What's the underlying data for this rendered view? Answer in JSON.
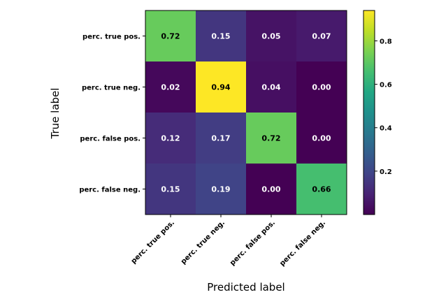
{
  "chart_data": {
    "type": "heatmap",
    "title": "",
    "xlabel": "Predicted label",
    "ylabel": "True label",
    "row_labels": [
      "perc. true pos.",
      "perc. true neg.",
      "perc. false pos.",
      "perc. false neg."
    ],
    "col_labels": [
      "perc. true pos.",
      "perc. true neg.",
      "perc. false pos.",
      "perc. false neg."
    ],
    "values": [
      [
        0.72,
        0.15,
        0.05,
        0.07
      ],
      [
        0.02,
        0.94,
        0.04,
        0.0
      ],
      [
        0.12,
        0.17,
        0.72,
        0.0
      ],
      [
        0.15,
        0.19,
        0.0,
        0.66
      ]
    ],
    "value_labels": [
      [
        "0.72",
        "0.15",
        "0.05",
        "0.07"
      ],
      [
        "0.02",
        "0.94",
        "0.04",
        "0.00"
      ],
      [
        "0.12",
        "0.17",
        "0.72",
        "0.00"
      ],
      [
        "0.15",
        "0.19",
        "0.00",
        "0.66"
      ]
    ],
    "colormap": "viridis",
    "colorbar": {
      "range": [
        0.0,
        0.94
      ],
      "ticks": [
        0.8,
        0.6,
        0.4,
        0.2
      ],
      "tick_labels": [
        "0.8",
        "0.6",
        "0.4",
        "0.2"
      ]
    }
  }
}
